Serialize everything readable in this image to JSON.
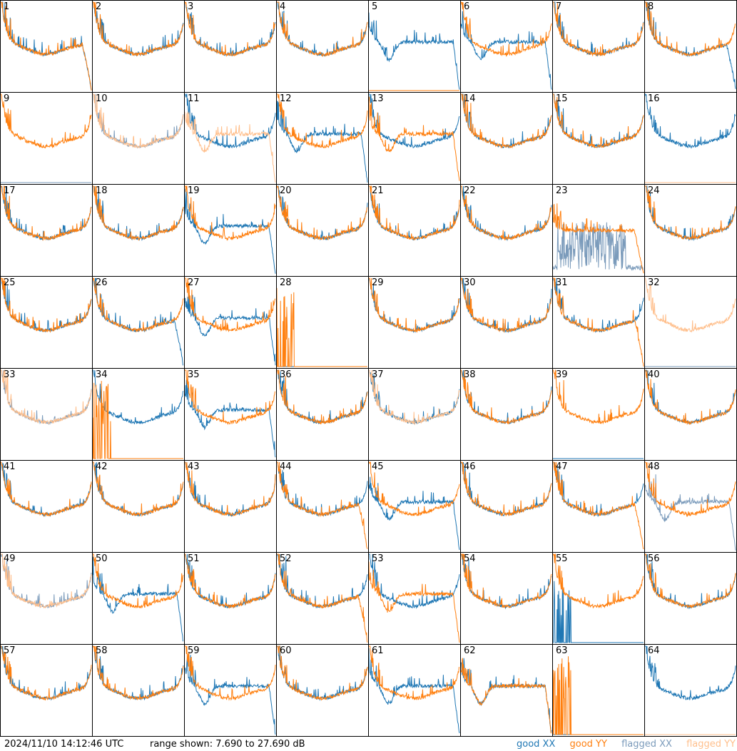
{
  "chart_data": {
    "type": "line",
    "layout": "8x8 grid of small spectra, one per tile",
    "x_axis": "frequency channel (no ticks shown)",
    "y_axis": "power (dB), no ticks shown",
    "ylim_db": [
      7.69,
      27.69
    ],
    "colors": {
      "good_xx": "#1f77b4",
      "good_yy": "#ff7f0e",
      "flagged_xx": "#7b9bbb",
      "flagged_yy": "#ffbf8c"
    },
    "legend_order": [
      "good_xx",
      "good_yy",
      "flagged_xx",
      "flagged_yy"
    ],
    "legend_position": "bottom-right",
    "tiles": [
      {
        "label": "1",
        "xx": {
          "flag": false,
          "shape": "edge_fall"
        },
        "yy": {
          "flag": false,
          "shape": "edge_fall"
        }
      },
      {
        "label": "2",
        "xx": {
          "flag": false,
          "shape": "normal"
        },
        "yy": {
          "flag": false,
          "shape": "normal"
        }
      },
      {
        "label": "3",
        "xx": {
          "flag": false,
          "shape": "normal"
        },
        "yy": {
          "flag": false,
          "shape": "normal"
        }
      },
      {
        "label": "4",
        "xx": {
          "flag": false,
          "shape": "normal"
        },
        "yy": {
          "flag": false,
          "shape": "normal"
        }
      },
      {
        "label": "5",
        "xx": {
          "flag": false,
          "shape": "dip_low"
        },
        "yy": {
          "flag": false,
          "shape": "zero"
        }
      },
      {
        "label": "6",
        "xx": {
          "flag": false,
          "shape": "dip_low"
        },
        "yy": {
          "flag": false,
          "shape": "normal"
        }
      },
      {
        "label": "7",
        "xx": {
          "flag": false,
          "shape": "normal"
        },
        "yy": {
          "flag": false,
          "shape": "normal"
        }
      },
      {
        "label": "8",
        "xx": {
          "flag": false,
          "shape": "edge_fall"
        },
        "yy": {
          "flag": false,
          "shape": "normal"
        }
      },
      {
        "label": "9",
        "xx": {
          "flag": true,
          "shape": "zero"
        },
        "yy": {
          "flag": false,
          "shape": "normal"
        }
      },
      {
        "label": "10",
        "xx": {
          "flag": true,
          "shape": "normal"
        },
        "yy": {
          "flag": true,
          "shape": "normal"
        }
      },
      {
        "label": "11",
        "xx": {
          "flag": false,
          "shape": "normal"
        },
        "yy": {
          "flag": true,
          "shape": "dip_low"
        }
      },
      {
        "label": "12",
        "xx": {
          "flag": false,
          "shape": "dip_low"
        },
        "yy": {
          "flag": false,
          "shape": "normal"
        }
      },
      {
        "label": "13",
        "xx": {
          "flag": false,
          "shape": "normal"
        },
        "yy": {
          "flag": false,
          "shape": "dip_low"
        }
      },
      {
        "label": "14",
        "xx": {
          "flag": false,
          "shape": "normal"
        },
        "yy": {
          "flag": false,
          "shape": "normal"
        }
      },
      {
        "label": "15",
        "xx": {
          "flag": false,
          "shape": "normal"
        },
        "yy": {
          "flag": false,
          "shape": "normal"
        }
      },
      {
        "label": "16",
        "xx": {
          "flag": false,
          "shape": "normal"
        },
        "yy": {
          "flag": true,
          "shape": "zero"
        }
      },
      {
        "label": "17",
        "xx": {
          "flag": false,
          "shape": "normal"
        },
        "yy": {
          "flag": false,
          "shape": "normal"
        }
      },
      {
        "label": "18",
        "xx": {
          "flag": false,
          "shape": "normal"
        },
        "yy": {
          "flag": false,
          "shape": "normal"
        }
      },
      {
        "label": "19",
        "xx": {
          "flag": false,
          "shape": "dip_low"
        },
        "yy": {
          "flag": false,
          "shape": "normal"
        }
      },
      {
        "label": "20",
        "xx": {
          "flag": false,
          "shape": "normal"
        },
        "yy": {
          "flag": false,
          "shape": "normal"
        }
      },
      {
        "label": "21",
        "xx": {
          "flag": false,
          "shape": "normal"
        },
        "yy": {
          "flag": false,
          "shape": "normal"
        }
      },
      {
        "label": "22",
        "xx": {
          "flag": false,
          "shape": "normal"
        },
        "yy": {
          "flag": false,
          "shape": "normal"
        }
      },
      {
        "label": "23",
        "xx": {
          "flag": true,
          "shape": "noisy_low"
        },
        "yy": {
          "flag": false,
          "shape": "flat_high"
        }
      },
      {
        "label": "24",
        "xx": {
          "flag": false,
          "shape": "normal"
        },
        "yy": {
          "flag": false,
          "shape": "normal"
        }
      },
      {
        "label": "25",
        "xx": {
          "flag": false,
          "shape": "normal"
        },
        "yy": {
          "flag": false,
          "shape": "normal"
        }
      },
      {
        "label": "26",
        "xx": {
          "flag": false,
          "shape": "edge_fall"
        },
        "yy": {
          "flag": false,
          "shape": "normal"
        }
      },
      {
        "label": "27",
        "xx": {
          "flag": false,
          "shape": "dip_low"
        },
        "yy": {
          "flag": false,
          "shape": "normal"
        }
      },
      {
        "label": "28",
        "xx": {
          "flag": false,
          "shape": "zero"
        },
        "yy": {
          "flag": false,
          "shape": "spiky_left"
        }
      },
      {
        "label": "29",
        "xx": {
          "flag": false,
          "shape": "normal"
        },
        "yy": {
          "flag": false,
          "shape": "normal"
        }
      },
      {
        "label": "30",
        "xx": {
          "flag": false,
          "shape": "normal"
        },
        "yy": {
          "flag": false,
          "shape": "normal"
        }
      },
      {
        "label": "31",
        "xx": {
          "flag": false,
          "shape": "normal"
        },
        "yy": {
          "flag": false,
          "shape": "edge_fall"
        }
      },
      {
        "label": "32",
        "xx": {
          "flag": true,
          "shape": "zero"
        },
        "yy": {
          "flag": true,
          "shape": "normal"
        }
      },
      {
        "label": "33",
        "xx": {
          "flag": true,
          "shape": "normal"
        },
        "yy": {
          "flag": true,
          "shape": "normal"
        }
      },
      {
        "label": "34",
        "xx": {
          "flag": false,
          "shape": "normal"
        },
        "yy": {
          "flag": false,
          "shape": "spiky_left"
        }
      },
      {
        "label": "35",
        "xx": {
          "flag": false,
          "shape": "dip_low"
        },
        "yy": {
          "flag": false,
          "shape": "normal"
        }
      },
      {
        "label": "36",
        "xx": {
          "flag": false,
          "shape": "normal"
        },
        "yy": {
          "flag": false,
          "shape": "normal"
        }
      },
      {
        "label": "37",
        "xx": {
          "flag": false,
          "shape": "normal"
        },
        "yy": {
          "flag": true,
          "shape": "normal"
        }
      },
      {
        "label": "38",
        "xx": {
          "flag": false,
          "shape": "normal"
        },
        "yy": {
          "flag": false,
          "shape": "normal"
        }
      },
      {
        "label": "39",
        "xx": {
          "flag": false,
          "shape": "zero"
        },
        "yy": {
          "flag": false,
          "shape": "normal"
        }
      },
      {
        "label": "40",
        "xx": {
          "flag": false,
          "shape": "normal"
        },
        "yy": {
          "flag": false,
          "shape": "normal"
        }
      },
      {
        "label": "41",
        "xx": {
          "flag": false,
          "shape": "normal"
        },
        "yy": {
          "flag": false,
          "shape": "normal"
        }
      },
      {
        "label": "42",
        "xx": {
          "flag": false,
          "shape": "normal"
        },
        "yy": {
          "flag": false,
          "shape": "normal"
        }
      },
      {
        "label": "43",
        "xx": {
          "flag": false,
          "shape": "normal"
        },
        "yy": {
          "flag": false,
          "shape": "normal"
        }
      },
      {
        "label": "44",
        "xx": {
          "flag": false,
          "shape": "normal"
        },
        "yy": {
          "flag": false,
          "shape": "edge_fall"
        }
      },
      {
        "label": "45",
        "xx": {
          "flag": false,
          "shape": "dip_low"
        },
        "yy": {
          "flag": false,
          "shape": "normal"
        }
      },
      {
        "label": "46",
        "xx": {
          "flag": false,
          "shape": "normal"
        },
        "yy": {
          "flag": false,
          "shape": "normal"
        }
      },
      {
        "label": "47",
        "xx": {
          "flag": false,
          "shape": "normal"
        },
        "yy": {
          "flag": false,
          "shape": "edge_fall"
        }
      },
      {
        "label": "48",
        "xx": {
          "flag": true,
          "shape": "dip_low"
        },
        "yy": {
          "flag": false,
          "shape": "normal"
        }
      },
      {
        "label": "49",
        "xx": {
          "flag": true,
          "shape": "normal"
        },
        "yy": {
          "flag": true,
          "shape": "normal"
        }
      },
      {
        "label": "50",
        "xx": {
          "flag": false,
          "shape": "dip_low"
        },
        "yy": {
          "flag": false,
          "shape": "normal"
        }
      },
      {
        "label": "51",
        "xx": {
          "flag": false,
          "shape": "normal"
        },
        "yy": {
          "flag": false,
          "shape": "normal"
        }
      },
      {
        "label": "52",
        "xx": {
          "flag": false,
          "shape": "normal"
        },
        "yy": {
          "flag": false,
          "shape": "edge_fall"
        }
      },
      {
        "label": "53",
        "xx": {
          "flag": false,
          "shape": "normal"
        },
        "yy": {
          "flag": false,
          "shape": "dip_low"
        }
      },
      {
        "label": "54",
        "xx": {
          "flag": false,
          "shape": "normal"
        },
        "yy": {
          "flag": false,
          "shape": "normal"
        }
      },
      {
        "label": "55",
        "xx": {
          "flag": false,
          "shape": "spiky_left"
        },
        "yy": {
          "flag": false,
          "shape": "normal"
        }
      },
      {
        "label": "56",
        "xx": {
          "flag": false,
          "shape": "normal"
        },
        "yy": {
          "flag": false,
          "shape": "normal"
        }
      },
      {
        "label": "57",
        "xx": {
          "flag": false,
          "shape": "normal"
        },
        "yy": {
          "flag": false,
          "shape": "normal"
        }
      },
      {
        "label": "58",
        "xx": {
          "flag": false,
          "shape": "normal"
        },
        "yy": {
          "flag": false,
          "shape": "normal"
        }
      },
      {
        "label": "59",
        "xx": {
          "flag": false,
          "shape": "dip_low"
        },
        "yy": {
          "flag": false,
          "shape": "normal"
        }
      },
      {
        "label": "60",
        "xx": {
          "flag": false,
          "shape": "normal"
        },
        "yy": {
          "flag": false,
          "shape": "normal"
        }
      },
      {
        "label": "61",
        "xx": {
          "flag": false,
          "shape": "dip_low"
        },
        "yy": {
          "flag": false,
          "shape": "normal"
        }
      },
      {
        "label": "62",
        "xx": {
          "flag": false,
          "shape": "dip_low"
        },
        "yy": {
          "flag": false,
          "shape": "dip_low"
        }
      },
      {
        "label": "63",
        "xx": {
          "flag": false,
          "shape": "zero"
        },
        "yy": {
          "flag": false,
          "shape": "spiky_left"
        }
      },
      {
        "label": "64",
        "xx": {
          "flag": false,
          "shape": "normal"
        },
        "yy": {
          "flag": true,
          "shape": "zero"
        }
      }
    ]
  },
  "footer": {
    "timestamp": "2024/11/10 14:12:46 UTC",
    "range_text": "range shown: 7.690 to 27.690 dB",
    "legend": {
      "good_xx": "good XX",
      "good_yy": "good YY",
      "flagged_xx": "flagged XX",
      "flagged_yy": "flagged YY"
    }
  }
}
